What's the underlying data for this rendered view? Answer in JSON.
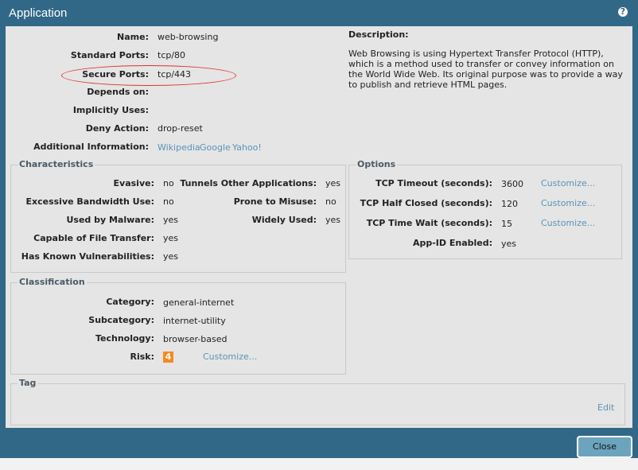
{
  "window": {
    "title": "Application",
    "help_icon": "question-circle-icon"
  },
  "general": [
    {
      "label": "Name:",
      "value": "web-browsing"
    },
    {
      "label": "Standard Ports:",
      "value": "tcp/80"
    },
    {
      "label": "Secure Ports:",
      "value": "tcp/443"
    },
    {
      "label": "Depends on:",
      "value": ""
    },
    {
      "label": "Implicitly Uses:",
      "value": ""
    },
    {
      "label": "Deny Action:",
      "value": "drop-reset"
    },
    {
      "label": "Additional Information:",
      "links": [
        "Wikipedia",
        "Google",
        "Yahoo!"
      ]
    }
  ],
  "description": {
    "label": "Description:",
    "text": "Web Browsing is using Hypertext Transfer Protocol (HTTP), which is a method used to transfer or convey information on the World Wide Web. Its original purpose was to provide a way to publish and retrieve HTML pages."
  },
  "characteristics": {
    "title": "Characteristics",
    "left": [
      {
        "label": "Evasive:",
        "value": "no"
      },
      {
        "label": "Excessive Bandwidth Use:",
        "value": "no"
      },
      {
        "label": "Used by Malware:",
        "value": "yes"
      },
      {
        "label": "Capable of File Transfer:",
        "value": "yes"
      },
      {
        "label": "Has Known Vulnerabilities:",
        "value": "yes"
      }
    ],
    "right": [
      {
        "label": "Tunnels Other Applications:",
        "value": "yes"
      },
      {
        "label": "Prone to Misuse:",
        "value": "no"
      },
      {
        "label": "Widely Used:",
        "value": "yes"
      }
    ]
  },
  "options": {
    "title": "Options",
    "rows": [
      {
        "label": "TCP Timeout (seconds):",
        "value": "3600",
        "link": "Customize..."
      },
      {
        "label": "TCP Half Closed (seconds):",
        "value": "120",
        "link": "Customize..."
      },
      {
        "label": "TCP Time Wait (seconds):",
        "value": "15",
        "link": "Customize..."
      },
      {
        "label": "App-ID Enabled:",
        "value": "yes"
      }
    ]
  },
  "classification": {
    "title": "Classification",
    "rows": [
      {
        "label": "Category:",
        "value": "general-internet"
      },
      {
        "label": "Subcategory:",
        "value": "internet-utility"
      },
      {
        "label": "Technology:",
        "value": "browser-based"
      },
      {
        "label": "Risk:",
        "value": "4",
        "link": "Customize..."
      }
    ],
    "risk_color": "#f7891f"
  },
  "tag": {
    "title": "Tag",
    "edit": "Edit"
  },
  "footer": {
    "close": "Close"
  }
}
